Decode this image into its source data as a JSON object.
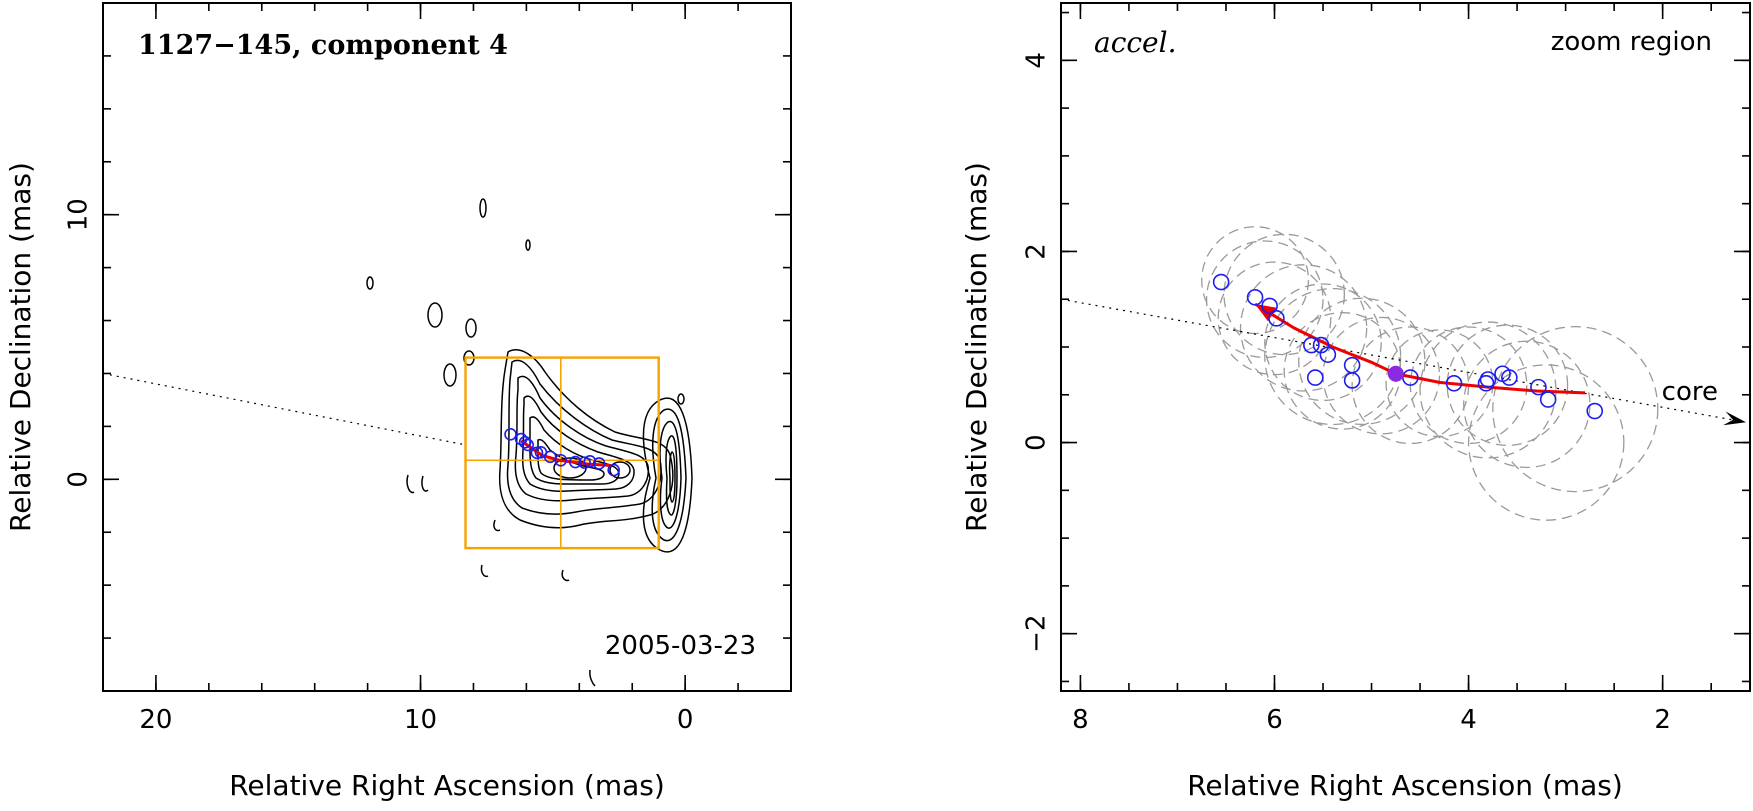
{
  "chart_data": [
    {
      "type": "scatter",
      "title": "1127−145, component 4",
      "annotation": "2005-03-23",
      "xlabel": "Relative Right Ascension (mas)",
      "ylabel": "Relative Declination (mas)",
      "xlim": [
        22,
        -4
      ],
      "ylim": [
        -8,
        18
      ],
      "xticks": [
        20,
        10,
        0
      ],
      "yticks": [
        0,
        10
      ],
      "grid": false,
      "zoom_box": {
        "ra": [
          8.3,
          1.0
        ],
        "dec": [
          -2.6,
          4.6
        ]
      },
      "jet_direction_line": {
        "from": [
          22,
          4.0
        ],
        "to": [
          8.3,
          1.3
        ]
      },
      "track": [
        [
          6.2,
          1.45
        ],
        [
          5.4,
          0.9
        ],
        [
          4.75,
          0.72
        ],
        [
          3.7,
          0.58
        ],
        [
          2.8,
          0.52
        ]
      ],
      "points": [
        [
          6.6,
          1.7
        ],
        [
          6.2,
          1.52
        ],
        [
          6.05,
          1.4
        ],
        [
          5.95,
          1.3
        ],
        [
          5.6,
          1.0
        ],
        [
          5.45,
          1.02
        ],
        [
          5.1,
          0.85
        ],
        [
          4.7,
          0.72
        ],
        [
          4.15,
          0.65
        ],
        [
          3.8,
          0.63
        ],
        [
          3.6,
          0.68
        ],
        [
          3.25,
          0.6
        ],
        [
          2.7,
          0.35
        ]
      ]
    },
    {
      "type": "scatter",
      "title": "accel.",
      "annotation": "zoom region",
      "xlabel": "Relative Right Ascension (mas)",
      "ylabel": "Relative Declination (mas)",
      "xlim": [
        8.2,
        1.1
      ],
      "ylim": [
        -2.6,
        4.6
      ],
      "xticks": [
        8,
        6,
        4,
        2
      ],
      "yticks": [
        -2,
        0,
        2,
        4
      ],
      "grid": false,
      "core_label": "core",
      "core_direction_line": {
        "from": [
          8.2,
          1.5
        ],
        "to": [
          1.1,
          0.22
        ]
      },
      "highlight_point": [
        4.75,
        0.72
      ],
      "highlight_color": "#8a2be2",
      "points_color": "#1d1df0",
      "track_color": "#f00000",
      "track": [
        [
          6.2,
          1.45
        ],
        [
          5.8,
          1.2
        ],
        [
          5.4,
          1.0
        ],
        [
          5.0,
          0.84
        ],
        [
          4.75,
          0.72
        ],
        [
          4.3,
          0.63
        ],
        [
          3.8,
          0.58
        ],
        [
          3.3,
          0.54
        ],
        [
          2.8,
          0.52
        ]
      ],
      "points": [
        [
          6.55,
          1.68
        ],
        [
          6.2,
          1.52
        ],
        [
          6.05,
          1.43
        ],
        [
          5.98,
          1.3
        ],
        [
          5.62,
          1.02
        ],
        [
          5.52,
          1.02
        ],
        [
          5.45,
          0.92
        ],
        [
          5.58,
          0.68
        ],
        [
          5.2,
          0.81
        ],
        [
          5.2,
          0.65
        ],
        [
          4.6,
          0.68
        ],
        [
          4.15,
          0.62
        ],
        [
          3.82,
          0.62
        ],
        [
          3.8,
          0.66
        ],
        [
          3.65,
          0.72
        ],
        [
          3.58,
          0.68
        ],
        [
          3.28,
          0.58
        ],
        [
          3.18,
          0.45
        ],
        [
          2.7,
          0.33
        ]
      ],
      "error_circles": [
        {
          "ra": 6.2,
          "dec": 1.7,
          "r": 0.55
        },
        {
          "ra": 6.1,
          "dec": 1.5,
          "r": 0.6
        },
        {
          "ra": 6.0,
          "dec": 1.3,
          "r": 0.58
        },
        {
          "ra": 5.9,
          "dec": 1.55,
          "r": 0.62
        },
        {
          "ra": 5.7,
          "dec": 1.2,
          "r": 0.65
        },
        {
          "ra": 5.5,
          "dec": 1.05,
          "r": 0.6
        },
        {
          "ra": 5.4,
          "dec": 0.9,
          "r": 0.7
        },
        {
          "ra": 5.3,
          "dec": 0.75,
          "r": 0.6
        },
        {
          "ra": 5.1,
          "dec": 0.85,
          "r": 0.65
        },
        {
          "ra": 4.9,
          "dec": 0.7,
          "r": 0.6
        },
        {
          "ra": 4.6,
          "dec": 0.6,
          "r": 0.6
        },
        {
          "ra": 4.3,
          "dec": 0.62,
          "r": 0.55
        },
        {
          "ra": 4.0,
          "dec": 0.6,
          "r": 0.6
        },
        {
          "ra": 3.8,
          "dec": 0.55,
          "r": 0.7
        },
        {
          "ra": 3.6,
          "dec": 0.6,
          "r": 0.62
        },
        {
          "ra": 3.4,
          "dec": 0.4,
          "r": 0.65
        },
        {
          "ra": 3.2,
          "dec": 0.0,
          "r": 0.8
        },
        {
          "ra": 2.9,
          "dec": 0.35,
          "r": 0.85
        }
      ]
    }
  ]
}
